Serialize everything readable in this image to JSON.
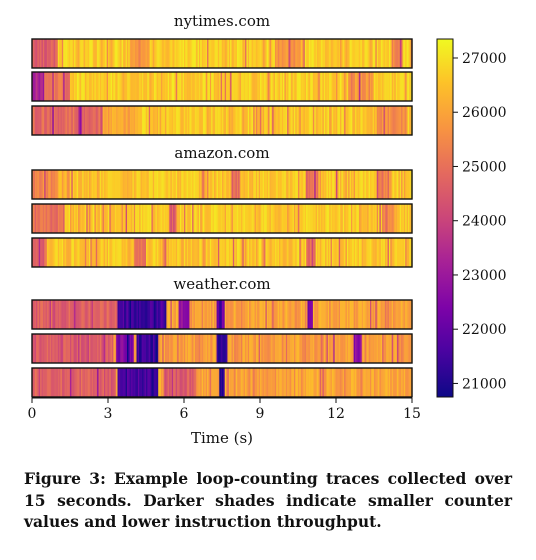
{
  "chart_data": {
    "type": "heatmap",
    "colormap": "plasma",
    "xlabel": "Time (s)",
    "x_ticks": [
      0,
      3,
      6,
      9,
      12,
      15
    ],
    "xlim": [
      0,
      15
    ],
    "colorbar": {
      "ticks": [
        21000,
        22000,
        23000,
        24000,
        25000,
        26000,
        27000
      ],
      "range": [
        20750,
        27350
      ]
    },
    "groups": [
      {
        "title": "nytimes.com",
        "traces": [
          {
            "baseline": 26700,
            "dips": [
              [
                0.0,
                1.0,
                24600
              ],
              [
                3.9,
                4.6,
                25600
              ],
              [
                9.6,
                10.6,
                25700
              ],
              [
                14.2,
                14.6,
                25500
              ]
            ]
          },
          {
            "baseline": 26750,
            "dips": [
              [
                0.0,
                0.5,
                23300
              ],
              [
                0.5,
                1.5,
                25100
              ],
              [
                12.5,
                13.5,
                25800
              ]
            ]
          },
          {
            "baseline": 26650,
            "dips": [
              [
                0.0,
                2.8,
                24900
              ],
              [
                3.0,
                4.2,
                26000
              ],
              [
                13.6,
                14.8,
                25600
              ]
            ]
          }
        ]
      },
      {
        "title": "amazon.com",
        "traces": [
          {
            "baseline": 26600,
            "dips": [
              [
                0.0,
                1.0,
                25600
              ],
              [
                7.9,
                8.2,
                24800
              ],
              [
                10.8,
                11.3,
                24900
              ],
              [
                13.6,
                14.2,
                25400
              ]
            ]
          },
          {
            "baseline": 26650,
            "dips": [
              [
                0.0,
                1.3,
                25000
              ],
              [
                5.4,
                5.7,
                24600
              ],
              [
                13.8,
                14.3,
                25300
              ]
            ]
          },
          {
            "baseline": 26600,
            "dips": [
              [
                0.0,
                0.6,
                24900
              ],
              [
                4.0,
                4.5,
                25200
              ],
              [
                10.8,
                11.2,
                25000
              ]
            ]
          }
        ]
      },
      {
        "title": "weather.com",
        "traces": [
          {
            "baseline": 26000,
            "dips": [
              [
                0.0,
                3.4,
                24700
              ],
              [
                3.4,
                5.3,
                21500
              ],
              [
                5.8,
                6.2,
                22800
              ],
              [
                7.3,
                7.6,
                22200
              ],
              [
                10.9,
                11.1,
                22400
              ]
            ]
          },
          {
            "baseline": 25900,
            "dips": [
              [
                0.0,
                3.2,
                24600
              ],
              [
                3.3,
                4.0,
                22500
              ],
              [
                4.1,
                5.0,
                21400
              ],
              [
                7.3,
                7.7,
                21300
              ],
              [
                12.7,
                13.0,
                22800
              ]
            ]
          },
          {
            "baseline": 26000,
            "dips": [
              [
                0.0,
                3.3,
                24700
              ],
              [
                3.4,
                5.0,
                21600
              ],
              [
                5.2,
                6.5,
                24600
              ],
              [
                7.4,
                7.6,
                21200
              ]
            ]
          }
        ]
      }
    ]
  },
  "caption": "Figure 3: Example loop-counting traces collected over 15 seconds. Darker shades indicate smaller counter values and lower instruction throughput."
}
